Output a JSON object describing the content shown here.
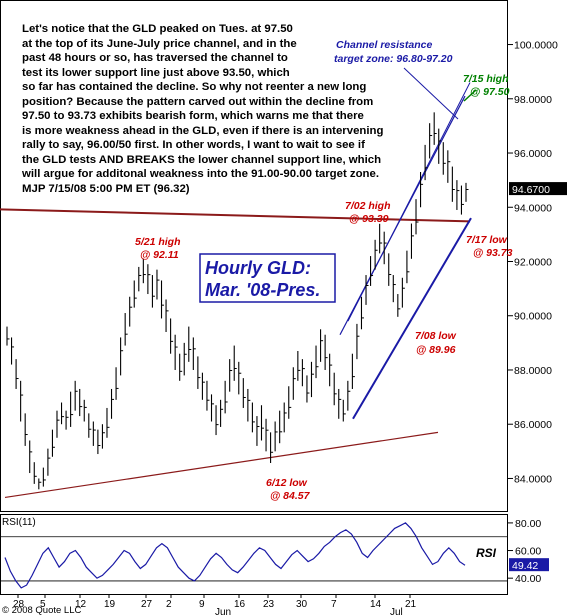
{
  "commentary": {
    "lines": [
      "Let's notice that the GLD peaked on Tues. at 97.50",
      "at the top of its June-July price channel, and in the",
      "past 48 hours or so, has traversed the channel to",
      "test its lower support line just above 93.50, which",
      "so far has contained the decline. So why not reenter a new long",
      "position? Because the pattern carved out within the decline from",
      "97.50 to 93.73 exhibits bearish form, which warns me that there",
      "is more weakness ahead in the GLD, even if there is an intervening",
      "rally to say, 96.00/50 first. In other words, I want to wait to see if",
      "the GLD tests AND BREAKS the lower channel support line, which",
      "will argue for additonal weakness into the 91.00-90.00 target zone.",
      "MJP  7/15/08  5:00 PM ET  (96.32)"
    ]
  },
  "chart_data": [
    {
      "type": "candlestick",
      "title": "Hourly GLD: Mar. '08-Pres.",
      "ylim": [
        82.8,
        101.2
      ],
      "yticks": [
        84,
        86,
        88,
        90,
        92,
        94,
        96,
        98,
        100
      ],
      "ytick_labels": [
        "84.0000",
        "86.0000",
        "88.0000",
        "90.0000",
        "92.0000",
        "94.0000",
        "96.0000",
        "98.0000",
        "100.0000"
      ],
      "last_price_label": "94.6700",
      "last_price": 94.67,
      "bars": [
        [
          89.6,
          88.9
        ],
        [
          89.2,
          88.2
        ],
        [
          88.4,
          87.3
        ],
        [
          87.6,
          86.1
        ],
        [
          86.4,
          85.2
        ],
        [
          85.4,
          84.2
        ],
        [
          84.6,
          83.8
        ],
        [
          84.0,
          83.6
        ],
        [
          84.4,
          83.7
        ],
        [
          85.1,
          84.1
        ],
        [
          85.8,
          84.8
        ],
        [
          86.5,
          85.5
        ],
        [
          86.8,
          86.0
        ],
        [
          86.5,
          85.8
        ],
        [
          87.2,
          85.9
        ],
        [
          87.6,
          86.5
        ],
        [
          87.3,
          86.3
        ],
        [
          86.9,
          86.1
        ],
        [
          86.4,
          85.5
        ],
        [
          86.1,
          85.2
        ],
        [
          85.8,
          84.9
        ],
        [
          86.0,
          85.1
        ],
        [
          86.6,
          85.5
        ],
        [
          87.3,
          86.2
        ],
        [
          88.1,
          86.9
        ],
        [
          89.2,
          87.8
        ],
        [
          90.1,
          88.9
        ],
        [
          90.7,
          89.6
        ],
        [
          91.3,
          90.3
        ],
        [
          91.8,
          90.9
        ],
        [
          92.11,
          91.2
        ],
        [
          91.9,
          90.8
        ],
        [
          91.5,
          90.3
        ],
        [
          91.7,
          90.6
        ],
        [
          91.3,
          89.9
        ],
        [
          90.6,
          89.4
        ],
        [
          89.9,
          88.6
        ],
        [
          89.3,
          88.0
        ],
        [
          88.6,
          87.6
        ],
        [
          89.0,
          87.8
        ],
        [
          89.6,
          88.3
        ],
        [
          89.2,
          88.0
        ],
        [
          88.5,
          87.3
        ],
        [
          87.9,
          86.9
        ],
        [
          87.6,
          86.5
        ],
        [
          87.1,
          86.1
        ],
        [
          86.7,
          85.6
        ],
        [
          86.9,
          85.9
        ],
        [
          87.6,
          86.4
        ],
        [
          88.4,
          87.2
        ],
        [
          88.9,
          87.6
        ],
        [
          88.3,
          87.1
        ],
        [
          87.7,
          86.6
        ],
        [
          87.3,
          86.1
        ],
        [
          86.8,
          85.7
        ],
        [
          86.3,
          85.2
        ],
        [
          86.7,
          85.4
        ],
        [
          86.2,
          85.0
        ],
        [
          85.7,
          84.57
        ],
        [
          86.1,
          85.0
        ],
        [
          86.5,
          85.3
        ],
        [
          86.8,
          85.7
        ],
        [
          87.4,
          86.2
        ],
        [
          88.1,
          86.9
        ],
        [
          88.7,
          87.6
        ],
        [
          88.4,
          87.4
        ],
        [
          87.8,
          86.8
        ],
        [
          88.3,
          87.0
        ],
        [
          88.9,
          87.7
        ],
        [
          89.5,
          88.3
        ],
        [
          89.3,
          88.0
        ],
        [
          88.6,
          87.4
        ],
        [
          87.9,
          86.7
        ],
        [
          87.3,
          86.2
        ],
        [
          86.9,
          86.1
        ],
        [
          87.6,
          86.5
        ],
        [
          88.6,
          87.3
        ],
        [
          89.7,
          88.4
        ],
        [
          90.7,
          89.5
        ],
        [
          91.5,
          90.4
        ],
        [
          92.2,
          91.1
        ],
        [
          92.8,
          91.7
        ],
        [
          93.39,
          92.3
        ],
        [
          93.1,
          91.9
        ],
        [
          92.3,
          91.1
        ],
        [
          91.5,
          90.5
        ],
        [
          90.8,
          89.96
        ],
        [
          91.4,
          90.3
        ],
        [
          92.4,
          91.2
        ],
        [
          93.4,
          92.1
        ],
        [
          94.3,
          93.0
        ],
        [
          95.3,
          94.0
        ],
        [
          96.3,
          95.0
        ],
        [
          97.1,
          95.8
        ],
        [
          97.5,
          96.3
        ],
        [
          96.9,
          95.6
        ],
        [
          96.4,
          95.2
        ],
        [
          96.1,
          94.9
        ],
        [
          95.5,
          94.2
        ],
        [
          95.0,
          93.9
        ],
        [
          94.8,
          93.73
        ],
        [
          94.9,
          94.2
        ]
      ],
      "xticks": [
        "28",
        "5",
        "12",
        "19",
        "27",
        "2",
        "9",
        "16",
        "23",
        "30",
        "7",
        "14",
        "21"
      ],
      "month_labels": [
        "Jun",
        "Jul"
      ],
      "annotations": [
        {
          "text": "5/21 high",
          "color": "#cc0000"
        },
        {
          "text": "@ 92.11",
          "color": "#cc0000"
        },
        {
          "text": "6/12 low",
          "color": "#cc0000"
        },
        {
          "text": "@ 84.57",
          "color": "#cc0000"
        },
        {
          "text": "7/02 high",
          "color": "#cc0000"
        },
        {
          "text": "@ 93.39",
          "color": "#cc0000"
        },
        {
          "text": "7/08 low",
          "color": "#cc0000"
        },
        {
          "text": "@ 89.96",
          "color": "#cc0000"
        },
        {
          "text": "7/17 low",
          "color": "#cc0000"
        },
        {
          "text": "@ 93.73",
          "color": "#cc0000"
        },
        {
          "text": "7/15 high",
          "color": "#008000"
        },
        {
          "text": "@  97.50",
          "color": "#008000"
        },
        {
          "text": "Channel resistance",
          "color": "#1a1aa6"
        },
        {
          "text": "target zone: 96.80-97.20",
          "color": "#1a1aa6"
        }
      ],
      "colors": {
        "bars": "#000000",
        "channel": "#1a1aa6",
        "support": "#8b1a1a",
        "label_box": "#1a1aa6"
      }
    },
    {
      "type": "line",
      "label": "RSI(11)",
      "series_label": "RSI",
      "ylim": [
        30,
        85
      ],
      "yticks": [
        40,
        60,
        80
      ],
      "ytick_labels": [
        "40.00",
        "60.00",
        "80.00"
      ],
      "last_value_label": "49.42",
      "values": [
        55,
        45,
        38,
        33,
        35,
        42,
        50,
        58,
        62,
        55,
        48,
        52,
        58,
        60,
        55,
        48,
        44,
        40,
        42,
        46,
        50,
        55,
        60,
        58,
        52,
        47,
        50,
        56,
        62,
        65,
        62,
        55,
        48,
        44,
        40,
        38,
        42,
        48,
        54,
        58,
        55,
        50,
        46,
        44,
        48,
        53,
        58,
        62,
        60,
        55,
        50,
        47,
        52,
        57,
        60,
        56,
        52,
        54,
        58,
        63,
        66,
        70,
        73,
        75,
        72,
        66,
        58,
        55,
        60,
        64,
        68,
        72,
        76,
        78,
        80,
        76,
        70,
        62,
        56,
        50,
        52,
        58,
        62,
        58,
        52,
        49.42
      ],
      "colors": {
        "line": "#1a1aa6",
        "reference": "#000000"
      }
    }
  ],
  "footer": {
    "copyright": "© 2008 Quote LLC"
  }
}
